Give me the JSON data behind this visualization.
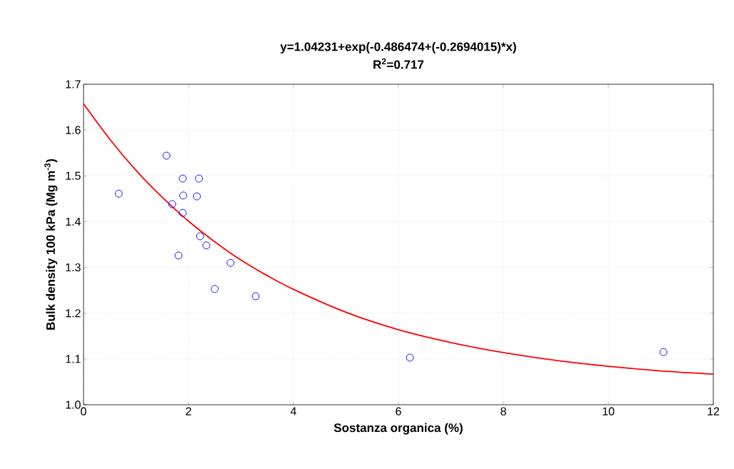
{
  "chart_data": {
    "type": "scatter",
    "title": "y=1.04231+exp(-0.486474+(-0.2694015)*x)",
    "subtitle": "R$^{2}$=0.717",
    "xlabel": "Sostanza organica (%)",
    "ylabel": "Bulk density 100 kPa (Mg m$^{-3}$)",
    "xlim": [
      0,
      12
    ],
    "xticks": [
      0,
      2,
      4,
      6,
      8,
      10,
      12
    ],
    "ylim": [
      1.0,
      1.7
    ],
    "yticks": [
      {
        "value": 1.0,
        "label": "1.0"
      },
      1.1,
      1.2,
      1.3,
      1.4,
      1.5,
      1.6,
      1.7
    ],
    "grid": true,
    "series": [
      {
        "marker": "circle",
        "color": "#0000ff",
        "x": [
          0.67,
          1.58,
          1.69,
          1.81,
          1.89,
          1.9,
          1.89,
          2.2,
          2.16,
          2.22,
          2.34,
          2.5,
          2.8,
          3.28,
          6.22,
          11.05
        ],
        "values": [
          1.461,
          1.544,
          1.438,
          1.326,
          1.494,
          1.457,
          1.419,
          1.494,
          1.455,
          1.368,
          1.348,
          1.253,
          1.31,
          1.237,
          1.103,
          1.115
        ]
      },
      {
        "type": "line",
        "marker": "none",
        "color": "#ff0000",
        "line_style": "solid",
        "x": [
          0,
          0.5,
          1,
          1.5,
          2,
          2.5,
          3,
          3.5,
          4,
          5,
          6,
          7,
          8,
          9,
          10,
          11,
          12
        ],
        "values": [
          1.657,
          1.58,
          1.512,
          1.453,
          1.401,
          1.356,
          1.316,
          1.282,
          1.252,
          1.202,
          1.164,
          1.136,
          1.114,
          1.097,
          1.084,
          1.074,
          1.067
        ]
      }
    ]
  }
}
